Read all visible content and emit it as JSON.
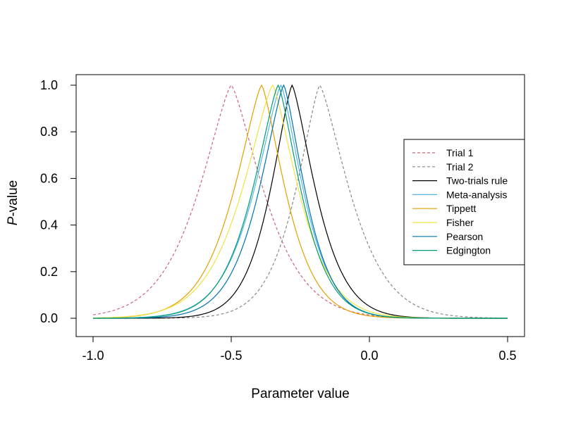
{
  "chart_data": {
    "type": "line",
    "title": "",
    "xlabel": "Parameter value",
    "ylabel_italic": "P",
    "ylabel_rest": "-value",
    "xlim": [
      -1.0,
      0.5
    ],
    "ylim": [
      0.0,
      1.0
    ],
    "x_ticks": [
      -1.0,
      -0.5,
      0.0,
      0.5
    ],
    "x_tick_labels": [
      "-1.0",
      "-0.5",
      "0.0",
      "0.5"
    ],
    "y_ticks": [
      0.0,
      0.2,
      0.4,
      0.6,
      0.8,
      1.0
    ],
    "y_tick_labels": [
      "0.0",
      "0.2",
      "0.4",
      "0.6",
      "0.8",
      "1.0"
    ],
    "grid": false,
    "legend_position": "right",
    "series": [
      {
        "name": "Trial 1",
        "color": "#CC6677",
        "dash": true,
        "peak": -0.5,
        "peak_value": 1.0,
        "x": [
          -1.0,
          -0.9,
          -0.8,
          -0.7,
          -0.6,
          -0.5,
          -0.4,
          -0.3,
          -0.2,
          -0.1,
          0.0,
          0.1,
          0.2
        ],
        "y": [
          0.01,
          0.04,
          0.12,
          0.3,
          0.62,
          1.0,
          0.62,
          0.3,
          0.12,
          0.04,
          0.01,
          0.003,
          0.0
        ]
      },
      {
        "name": "Trial 2",
        "color": "#888888",
        "dash": true,
        "peak": -0.18,
        "peak_value": 1.0,
        "x": [
          -1.0,
          -0.6,
          -0.5,
          -0.4,
          -0.3,
          -0.18,
          -0.1,
          0.0,
          0.1,
          0.2,
          0.3,
          0.5
        ],
        "y": [
          0.0,
          0.01,
          0.04,
          0.12,
          0.38,
          1.0,
          0.62,
          0.33,
          0.12,
          0.04,
          0.01,
          0.0
        ]
      },
      {
        "name": "Two-trials rule",
        "color": "#000000",
        "dash": false,
        "peak": -0.28,
        "peak_value": 1.0,
        "x": [
          -1.0,
          -0.7,
          -0.6,
          -0.5,
          -0.4,
          -0.28,
          -0.2,
          -0.1,
          0.0,
          0.1,
          0.2,
          0.5
        ],
        "y": [
          0.0,
          0.0,
          0.02,
          0.1,
          0.33,
          1.0,
          0.58,
          0.2,
          0.05,
          0.01,
          0.0,
          0.0
        ]
      },
      {
        "name": "Meta-analysis",
        "color": "#56B4E9",
        "dash": false,
        "peak": -0.32,
        "peak_value": 1.0,
        "x": [
          -1.0,
          -0.7,
          -0.6,
          -0.5,
          -0.4,
          -0.32,
          -0.2,
          -0.1,
          0.0,
          0.1,
          0.2,
          0.5
        ],
        "y": [
          0.0,
          0.02,
          0.07,
          0.26,
          0.64,
          1.0,
          0.36,
          0.1,
          0.02,
          0.0,
          0.0,
          0.0
        ]
      },
      {
        "name": "Tippett",
        "color": "#E69F00",
        "dash": false,
        "peak": -0.39,
        "peak_value": 1.0,
        "x": [
          -1.0,
          -0.8,
          -0.7,
          -0.6,
          -0.5,
          -0.39,
          -0.3,
          -0.2,
          -0.1,
          0.0,
          0.1,
          0.5
        ],
        "y": [
          0.0,
          0.02,
          0.07,
          0.2,
          0.5,
          1.0,
          0.48,
          0.2,
          0.05,
          0.01,
          0.0,
          0.0
        ]
      },
      {
        "name": "Fisher",
        "color": "#F0E442",
        "dash": false,
        "peak": -0.35,
        "peak_value": 1.0,
        "x": [
          -1.0,
          -0.8,
          -0.7,
          -0.6,
          -0.5,
          -0.35,
          -0.25,
          -0.15,
          -0.05,
          0.05,
          0.15,
          0.5
        ],
        "y": [
          0.0,
          0.01,
          0.05,
          0.16,
          0.42,
          1.0,
          0.5,
          0.2,
          0.06,
          0.01,
          0.0,
          0.0
        ]
      },
      {
        "name": "Pearson",
        "color": "#0072B2",
        "dash": false,
        "peak": -0.31,
        "peak_value": 1.0,
        "x": [
          -1.0,
          -0.7,
          -0.6,
          -0.5,
          -0.4,
          -0.31,
          -0.2,
          -0.1,
          0.0,
          0.1,
          0.2,
          0.5
        ],
        "y": [
          0.0,
          0.01,
          0.05,
          0.2,
          0.55,
          1.0,
          0.38,
          0.1,
          0.02,
          0.0,
          0.0,
          0.0
        ]
      },
      {
        "name": "Edgington",
        "color": "#009E73",
        "dash": false,
        "peak": -0.33,
        "peak_value": 1.0,
        "x": [
          -1.0,
          -0.7,
          -0.6,
          -0.5,
          -0.4,
          -0.33,
          -0.2,
          -0.1,
          0.0,
          0.1,
          0.2,
          0.5
        ],
        "y": [
          0.0,
          0.03,
          0.09,
          0.28,
          0.65,
          1.0,
          0.33,
          0.09,
          0.02,
          0.0,
          0.0,
          0.0
        ]
      }
    ]
  }
}
